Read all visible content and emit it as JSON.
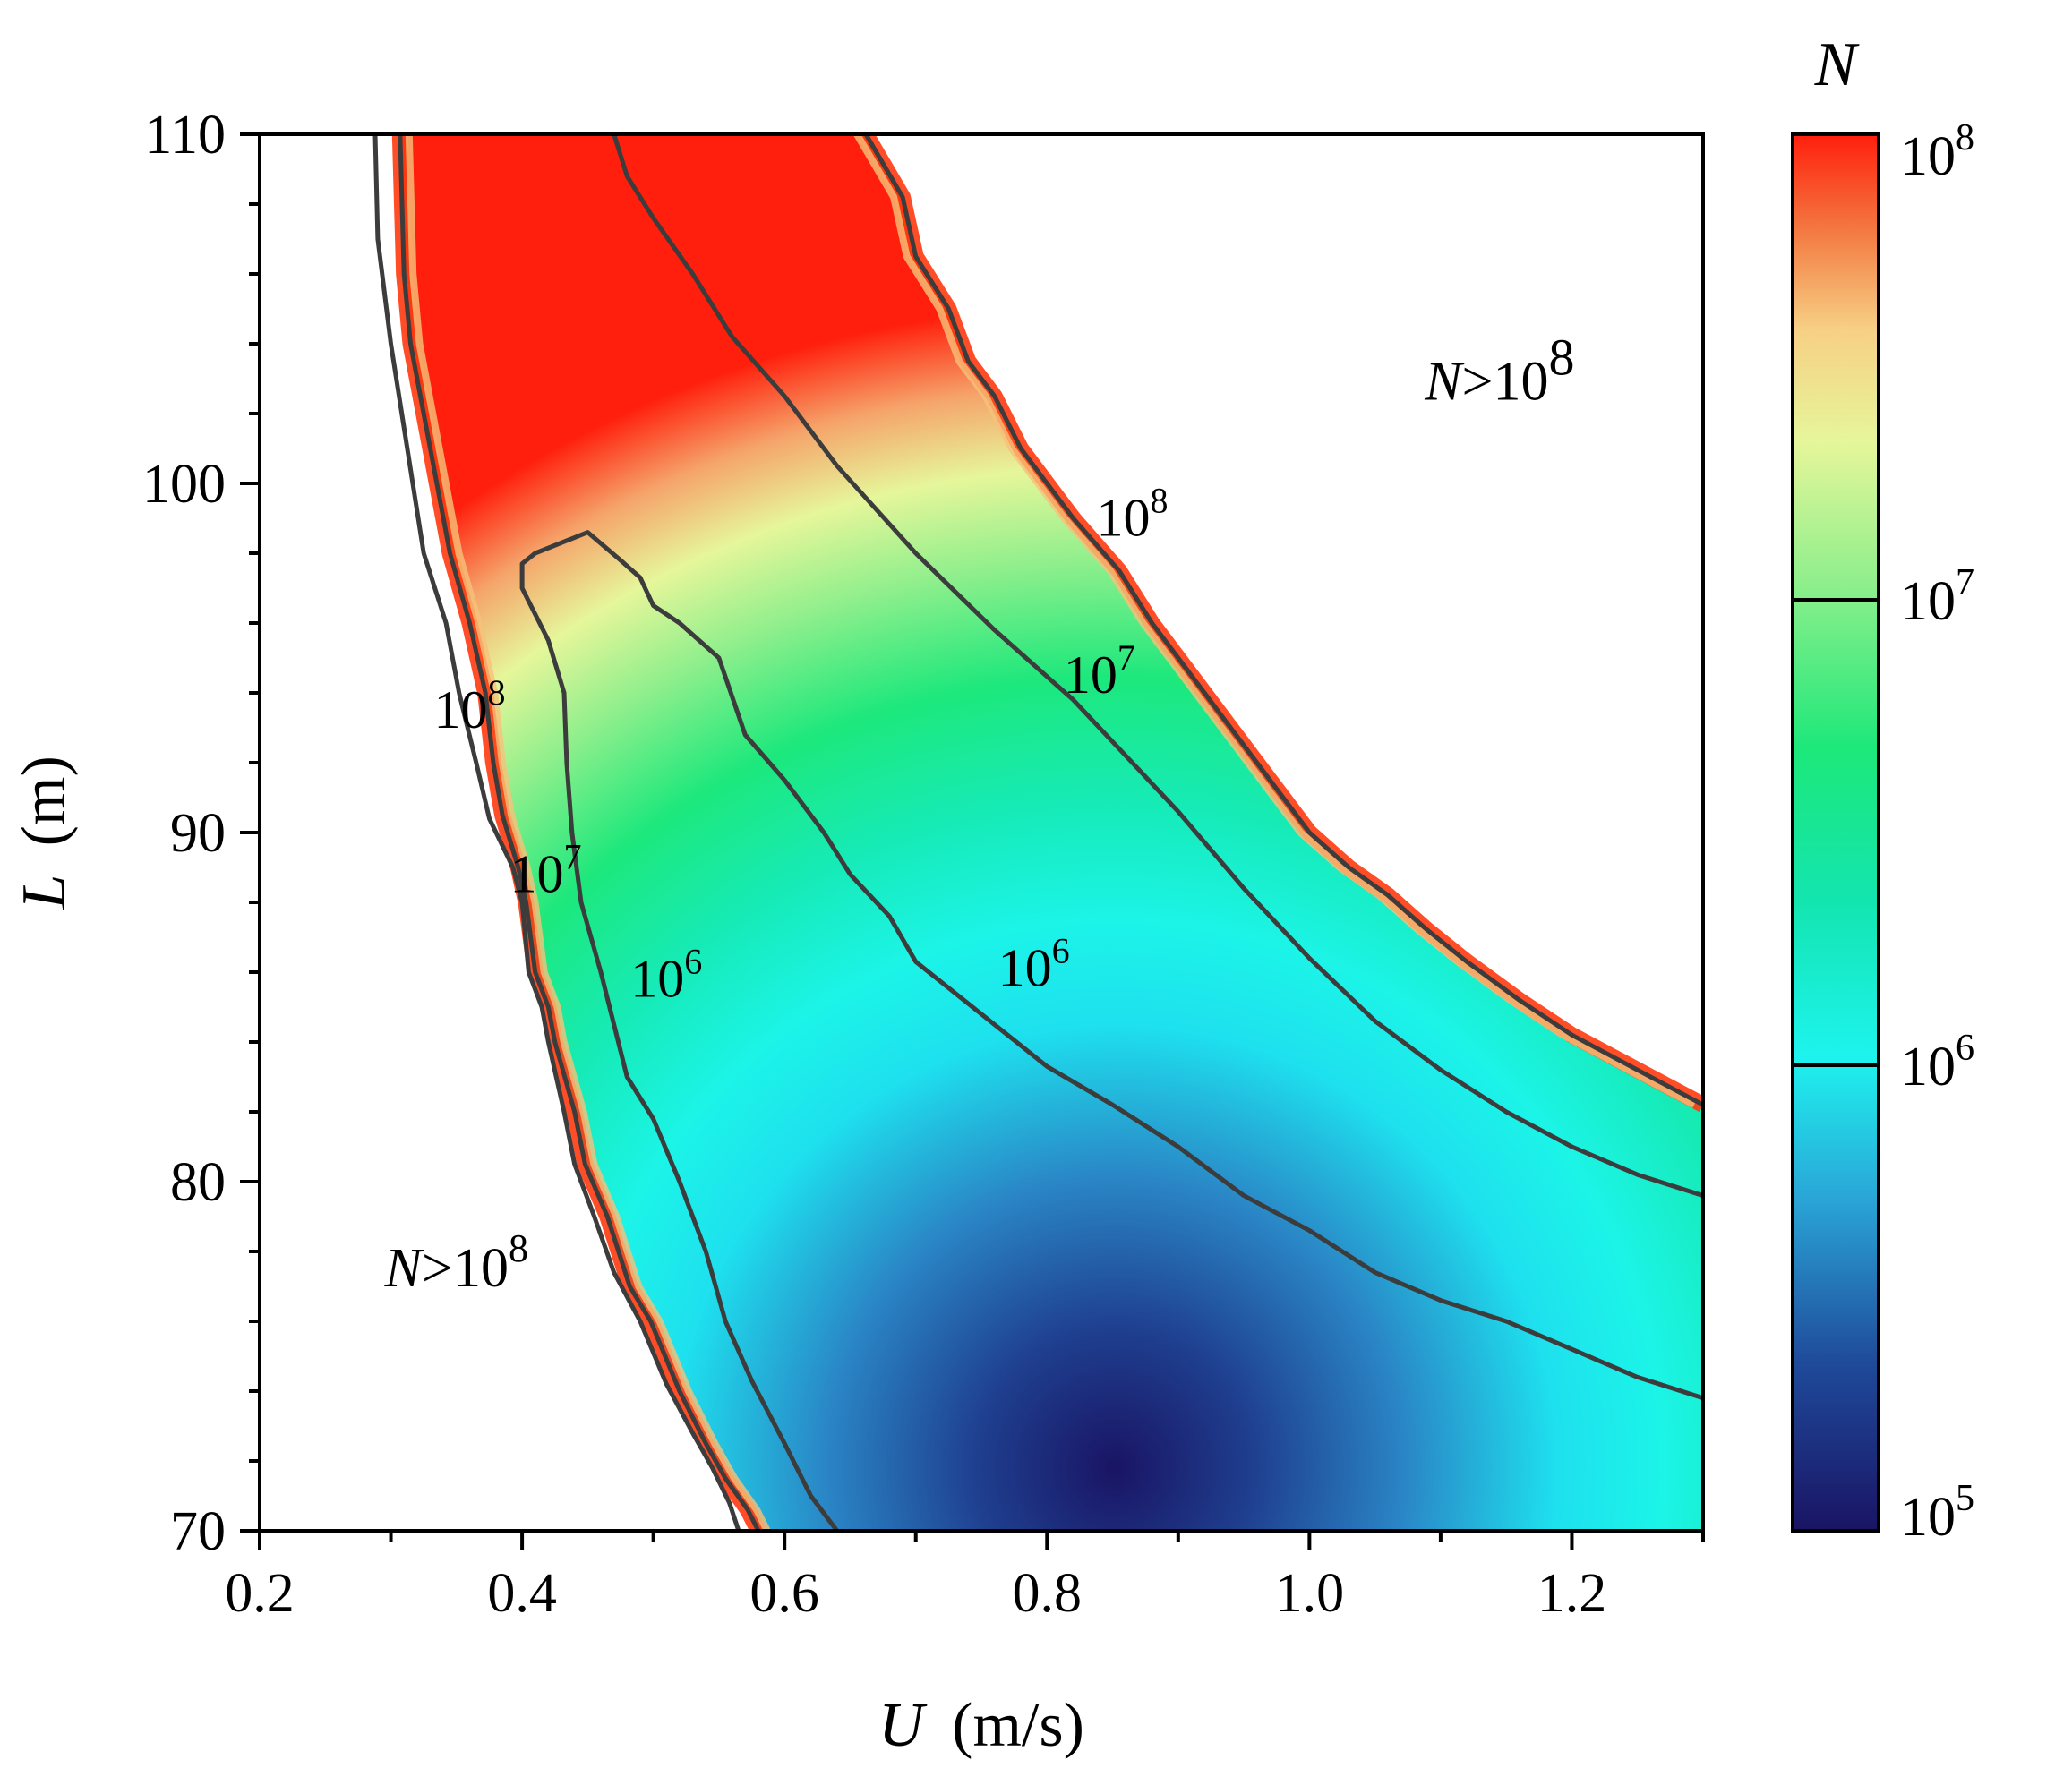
{
  "chart_data": {
    "type": "contour",
    "title": "",
    "xlabel": {
      "symbol": "U",
      "unit": "(m/s)"
    },
    "ylabel": {
      "symbol": "L",
      "unit": "(m)"
    },
    "xlim": [
      0.2,
      1.3
    ],
    "ylim": [
      70,
      110
    ],
    "xticks": [
      0.2,
      0.4,
      0.6,
      0.8,
      1.0,
      1.2
    ],
    "xtick_labels": [
      "0.2",
      "0.4",
      "0.6",
      "0.8",
      "1.0",
      "1.2"
    ],
    "yticks": [
      70,
      80,
      90,
      100,
      110
    ],
    "ytick_labels": [
      "70",
      "80",
      "90",
      "100",
      "110"
    ],
    "colorbar": {
      "title": "N",
      "scale": "log",
      "range": [
        100000,
        100000000
      ],
      "tick_labels": [
        {
          "base": "10",
          "exp": "8",
          "value": 100000000
        },
        {
          "base": "10",
          "exp": "7",
          "value": 10000000
        },
        {
          "base": "10",
          "exp": "6",
          "value": 1000000
        },
        {
          "base": "10",
          "exp": "5",
          "value": 100000
        }
      ],
      "colormap": [
        "#1a1464",
        "#1f4a9a",
        "#2aa7d8",
        "#1ef3ee",
        "#13e5b0",
        "#1de87a",
        "#90ef8c",
        "#e6f69a",
        "#f7d085",
        "#f37a42",
        "#ff1f0c"
      ]
    },
    "contours": [
      {
        "level": 100000000,
        "label_base": "10",
        "label_exp": "8",
        "segments": [
          {
            "name": "left",
            "points": [
              [
                0.307,
                110
              ],
              [
                0.31,
                106
              ],
              [
                0.315,
                104
              ],
              [
                0.345,
                98
              ],
              [
                0.36,
                96
              ],
              [
                0.372,
                94
              ],
              [
                0.378,
                92
              ],
              [
                0.385,
                90.5
              ],
              [
                0.397,
                89
              ],
              [
                0.403,
                88
              ],
              [
                0.41,
                86
              ],
              [
                0.42,
                85
              ],
              [
                0.425,
                84
              ],
              [
                0.44,
                82
              ],
              [
                0.448,
                80.5
              ],
              [
                0.465,
                79
              ],
              [
                0.482,
                77
              ],
              [
                0.498,
                76
              ],
              [
                0.52,
                74
              ],
              [
                0.54,
                72.5
              ],
              [
                0.555,
                71.5
              ],
              [
                0.572,
                70.6
              ],
              [
                0.58,
                70
              ]
            ]
          },
          {
            "name": "right",
            "points": [
              [
                0.662,
                110
              ],
              [
                0.69,
                108.2
              ],
              [
                0.7,
                106.5
              ],
              [
                0.725,
                105
              ],
              [
                0.74,
                103.5
              ],
              [
                0.76,
                102.5
              ],
              [
                0.78,
                101
              ],
              [
                0.82,
                99
              ],
              [
                0.855,
                97.5
              ],
              [
                0.88,
                96
              ],
              [
                0.91,
                94.5
              ],
              [
                0.94,
                93
              ],
              [
                0.97,
                91.5
              ],
              [
                1.0,
                90
              ],
              [
                1.03,
                89
              ],
              [
                1.06,
                88.2
              ],
              [
                1.09,
                87.2
              ],
              [
                1.12,
                86.3
              ],
              [
                1.16,
                85.2
              ],
              [
                1.2,
                84.2
              ],
              [
                1.25,
                83.2
              ],
              [
                1.3,
                82.2
              ]
            ]
          }
        ],
        "labels": [
          {
            "x": 0.36,
            "y": 93.0
          },
          {
            "x": 0.865,
            "y": 98.5
          }
        ]
      },
      {
        "level": 10000000,
        "label_base": "10",
        "label_exp": "7",
        "segments": [
          {
            "name": "left",
            "points": [
              [
                0.288,
                110
              ],
              [
                0.29,
                107
              ],
              [
                0.3,
                104
              ],
              [
                0.325,
                98
              ],
              [
                0.342,
                96
              ],
              [
                0.352,
                94
              ],
              [
                0.365,
                92
              ],
              [
                0.375,
                90.4
              ],
              [
                0.393,
                89
              ],
              [
                0.4,
                88
              ],
              [
                0.405,
                86
              ],
              [
                0.415,
                85
              ],
              [
                0.42,
                84
              ],
              [
                0.432,
                82
              ],
              [
                0.44,
                80.5
              ],
              [
                0.455,
                79
              ],
              [
                0.47,
                77.4
              ],
              [
                0.49,
                76
              ],
              [
                0.51,
                74.2
              ],
              [
                0.53,
                72.8
              ],
              [
                0.545,
                71.8
              ],
              [
                0.558,
                70.8
              ],
              [
                0.565,
                70
              ]
            ]
          },
          {
            "name": "right",
            "points": [
              [
                0.47,
                110
              ],
              [
                0.48,
                108.8
              ],
              [
                0.5,
                107.6
              ],
              [
                0.53,
                106
              ],
              [
                0.56,
                104.2
              ],
              [
                0.6,
                102.5
              ],
              [
                0.64,
                100.5
              ],
              [
                0.7,
                98
              ],
              [
                0.76,
                95.8
              ],
              [
                0.82,
                93.8
              ],
              [
                0.86,
                92.2
              ],
              [
                0.9,
                90.6
              ],
              [
                0.95,
                88.4
              ],
              [
                1.0,
                86.4
              ],
              [
                1.05,
                84.6
              ],
              [
                1.1,
                83.2
              ],
              [
                1.15,
                82.0
              ],
              [
                1.2,
                81.0
              ],
              [
                1.25,
                80.2
              ],
              [
                1.3,
                79.6
              ]
            ]
          }
        ],
        "labels": [
          {
            "x": 0.418,
            "y": 88.3
          },
          {
            "x": 0.84,
            "y": 94.0
          }
        ]
      },
      {
        "level": 1000000,
        "label_base": "10",
        "label_exp": "6",
        "segments": [
          {
            "name": "loop",
            "points": [
              [
                0.64,
                70
              ],
              [
                0.62,
                71
              ],
              [
                0.6,
                72.5
              ],
              [
                0.575,
                74.3
              ],
              [
                0.555,
                76
              ],
              [
                0.54,
                78
              ],
              [
                0.52,
                80
              ],
              [
                0.5,
                81.8
              ],
              [
                0.48,
                83
              ],
              [
                0.46,
                86
              ],
              [
                0.445,
                88
              ],
              [
                0.438,
                90
              ],
              [
                0.434,
                92
              ],
              [
                0.432,
                94
              ],
              [
                0.42,
                95.5
              ],
              [
                0.4,
                97
              ],
              [
                0.4,
                97.7
              ],
              [
                0.41,
                98
              ],
              [
                0.45,
                98.6
              ],
              [
                0.475,
                97.8
              ],
              [
                0.49,
                97.3
              ],
              [
                0.5,
                96.5
              ],
              [
                0.52,
                96
              ],
              [
                0.55,
                95
              ],
              [
                0.57,
                92.8
              ],
              [
                0.6,
                91.5
              ],
              [
                0.63,
                90
              ],
              [
                0.65,
                88.8
              ],
              [
                0.68,
                87.6
              ],
              [
                0.7,
                86.3
              ],
              [
                0.75,
                84.8
              ],
              [
                0.8,
                83.3
              ],
              [
                0.85,
                82.2
              ],
              [
                0.9,
                81.0
              ],
              [
                0.95,
                79.6
              ],
              [
                1.0,
                78.6
              ],
              [
                1.05,
                77.4
              ],
              [
                1.1,
                76.6
              ],
              [
                1.15,
                76.0
              ],
              [
                1.2,
                75.2
              ],
              [
                1.25,
                74.4
              ],
              [
                1.3,
                73.8
              ]
            ]
          }
        ],
        "labels": [
          {
            "x": 0.51,
            "y": 85.3
          },
          {
            "x": 0.79,
            "y": 85.6
          }
        ]
      }
    ],
    "annotations": [
      {
        "text_prefix": "N",
        "text_rel": ">",
        "text_base": "10",
        "text_exp": "8",
        "x": 0.35,
        "y": 77.0
      },
      {
        "text_prefix": "N",
        "text_rel": ">",
        "text_base": "10",
        "text_exp": "8",
        "x": 1.145,
        "y": 102.4
      }
    ]
  }
}
